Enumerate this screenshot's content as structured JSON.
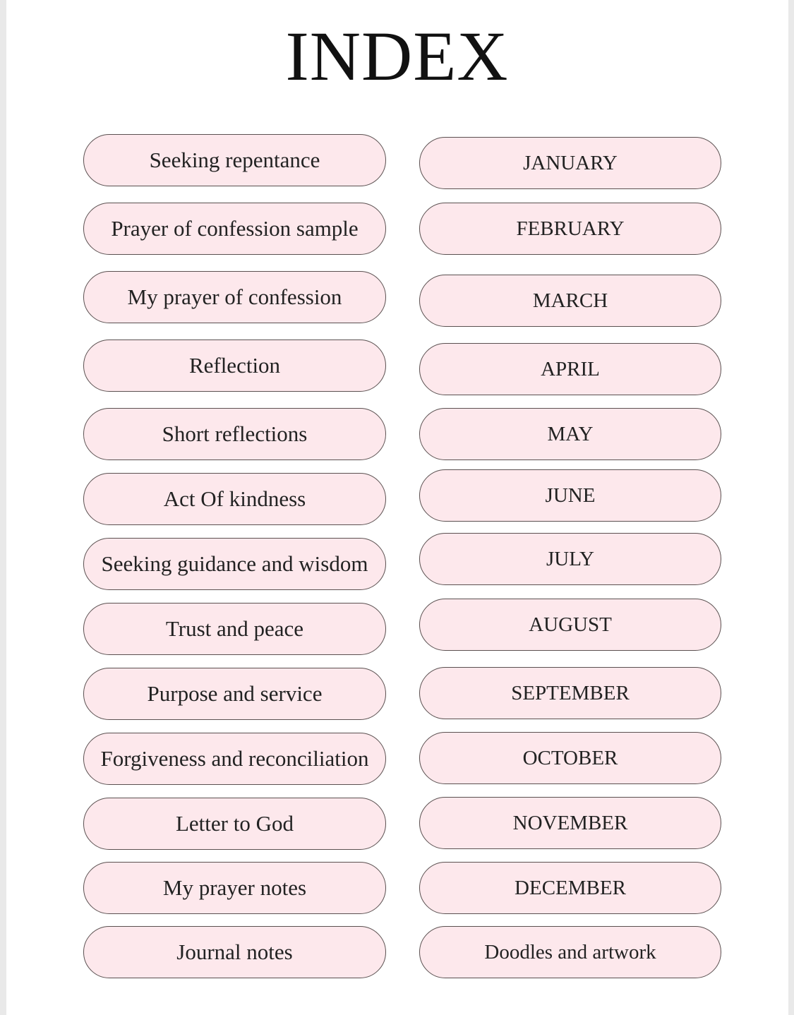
{
  "title": "INDEX",
  "left_items": [
    "Seeking repentance",
    "Prayer of confession sample",
    "My prayer of confession",
    "Reflection",
    "Short reflections",
    "Act Of kindness",
    "Seeking guidance and wisdom",
    "Trust and peace",
    "Purpose and service",
    "Forgiveness and reconciliation",
    "Letter to God",
    "My prayer notes",
    "Journal notes"
  ],
  "right_items": [
    "JANUARY",
    "FEBRUARY",
    "MARCH",
    "APRIL",
    "MAY",
    "JUNE",
    "JULY",
    "AUGUST",
    "SEPTEMBER",
    "OCTOBER",
    "NOVEMBER",
    "DECEMBER",
    "Doodles and artwork"
  ],
  "colors": {
    "pill_fill": "#fde8ec",
    "pill_border": "#5a5050"
  }
}
